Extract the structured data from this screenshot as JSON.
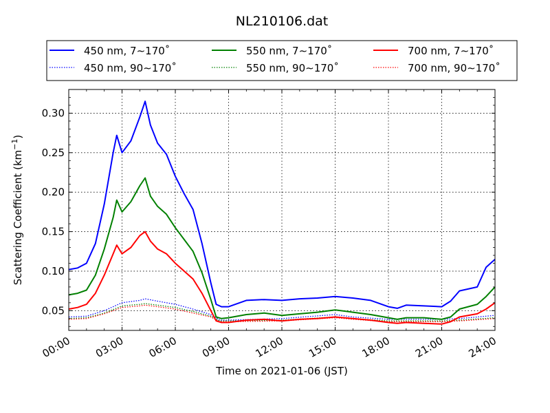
{
  "chart_data": {
    "type": "line",
    "title": "NL210106.dat",
    "xlabel": "Time on 2021-01-06 (JST)",
    "ylabel_main": "Scattering Coefficient (km",
    "ylabel_exp": "−1",
    "ylabel_close": ")",
    "x_unit": "hours",
    "xlim": [
      0,
      24
    ],
    "ylim": [
      0.025,
      0.33
    ],
    "x_ticks": [
      {
        "value": 0,
        "label": "00:00"
      },
      {
        "value": 3,
        "label": "03:00"
      },
      {
        "value": 6,
        "label": "06:00"
      },
      {
        "value": 9,
        "label": "09:00"
      },
      {
        "value": 12,
        "label": "12:00"
      },
      {
        "value": 15,
        "label": "15:00"
      },
      {
        "value": 18,
        "label": "18:00"
      },
      {
        "value": 21,
        "label": "21:00"
      },
      {
        "value": 24,
        "label": "24:00"
      }
    ],
    "y_ticks": [
      {
        "value": 0.05,
        "label": "0.05"
      },
      {
        "value": 0.1,
        "label": "0.10"
      },
      {
        "value": 0.15,
        "label": "0.15"
      },
      {
        "value": 0.2,
        "label": "0.20"
      },
      {
        "value": 0.25,
        "label": "0.25"
      },
      {
        "value": 0.3,
        "label": "0.30"
      }
    ],
    "grid": true,
    "grid_style": "dotted",
    "legend_position": "top, above plot",
    "legend_columns": 3,
    "series": [
      {
        "name": "450 nm, 7∼170˚",
        "color": "#0000ff",
        "style": "solid",
        "x": [
          0,
          0.5,
          1,
          1.5,
          2,
          2.5,
          2.7,
          3,
          3.5,
          4,
          4.3,
          4.6,
          5,
          5.5,
          6,
          6.5,
          7,
          7.5,
          8,
          8.3,
          8.6,
          9,
          10,
          11,
          12,
          13,
          14,
          15,
          16,
          17,
          18,
          18.5,
          19,
          20,
          21,
          21.5,
          22,
          23,
          23.5,
          24
        ],
        "y": [
          0.102,
          0.104,
          0.11,
          0.135,
          0.185,
          0.25,
          0.272,
          0.25,
          0.265,
          0.295,
          0.315,
          0.285,
          0.262,
          0.248,
          0.22,
          0.198,
          0.178,
          0.135,
          0.085,
          0.058,
          0.055,
          0.055,
          0.063,
          0.064,
          0.063,
          0.065,
          0.066,
          0.068,
          0.066,
          0.063,
          0.055,
          0.053,
          0.057,
          0.056,
          0.055,
          0.062,
          0.075,
          0.08,
          0.105,
          0.115
        ]
      },
      {
        "name": "550 nm, 7∼170˚",
        "color": "#008000",
        "style": "solid",
        "x": [
          0,
          0.5,
          1,
          1.5,
          2,
          2.5,
          2.7,
          3,
          3.5,
          4,
          4.3,
          4.6,
          5,
          5.5,
          6,
          6.5,
          7,
          7.5,
          8,
          8.3,
          8.6,
          9,
          10,
          11,
          12,
          13,
          14,
          15,
          16,
          17,
          18,
          18.5,
          19,
          20,
          21,
          21.5,
          22,
          23,
          23.5,
          24
        ],
        "y": [
          0.07,
          0.072,
          0.076,
          0.095,
          0.128,
          0.168,
          0.19,
          0.175,
          0.188,
          0.208,
          0.218,
          0.195,
          0.182,
          0.172,
          0.155,
          0.14,
          0.125,
          0.098,
          0.064,
          0.042,
          0.04,
          0.041,
          0.045,
          0.047,
          0.044,
          0.046,
          0.048,
          0.051,
          0.048,
          0.045,
          0.041,
          0.039,
          0.041,
          0.041,
          0.039,
          0.042,
          0.052,
          0.058,
          0.068,
          0.08
        ]
      },
      {
        "name": "700 nm, 7∼170˚",
        "color": "#ff0000",
        "style": "solid",
        "x": [
          0,
          0.5,
          1,
          1.5,
          2,
          2.5,
          2.7,
          3,
          3.5,
          4,
          4.3,
          4.6,
          5,
          5.5,
          6,
          6.5,
          7,
          7.5,
          8,
          8.3,
          8.6,
          9,
          10,
          11,
          12,
          13,
          14,
          15,
          16,
          17,
          18,
          18.5,
          19,
          20,
          21,
          21.5,
          22,
          23,
          23.5,
          24
        ],
        "y": [
          0.052,
          0.054,
          0.058,
          0.072,
          0.095,
          0.122,
          0.133,
          0.122,
          0.13,
          0.145,
          0.15,
          0.138,
          0.128,
          0.122,
          0.11,
          0.1,
          0.09,
          0.072,
          0.05,
          0.037,
          0.035,
          0.035,
          0.038,
          0.039,
          0.037,
          0.039,
          0.04,
          0.042,
          0.04,
          0.038,
          0.035,
          0.034,
          0.035,
          0.034,
          0.033,
          0.036,
          0.042,
          0.046,
          0.052,
          0.06
        ]
      },
      {
        "name": "450 nm, 90∼170˚",
        "color": "#0000ff",
        "style": "dotted",
        "x": [
          0,
          1,
          2,
          3,
          4,
          4.3,
          5,
          6,
          7,
          8,
          8.5,
          9,
          12,
          15,
          16,
          18,
          21,
          22,
          24
        ],
        "y": [
          0.042,
          0.043,
          0.05,
          0.06,
          0.063,
          0.065,
          0.062,
          0.058,
          0.052,
          0.045,
          0.038,
          0.038,
          0.04,
          0.045,
          0.042,
          0.039,
          0.039,
          0.04,
          0.044
        ]
      },
      {
        "name": "550 nm, 90∼170˚",
        "color": "#008000",
        "style": "dotted",
        "x": [
          0,
          1,
          2,
          3,
          4,
          4.3,
          5,
          6,
          7,
          8,
          8.5,
          9,
          12,
          15,
          16,
          18,
          21,
          22,
          24
        ],
        "y": [
          0.04,
          0.041,
          0.047,
          0.056,
          0.058,
          0.059,
          0.057,
          0.054,
          0.049,
          0.043,
          0.037,
          0.037,
          0.038,
          0.042,
          0.04,
          0.037,
          0.037,
          0.038,
          0.041
        ]
      },
      {
        "name": "700 nm, 90∼170˚",
        "color": "#ff0000",
        "style": "dotted",
        "x": [
          0,
          1,
          2,
          3,
          4,
          4.3,
          5,
          6,
          7,
          8,
          8.5,
          9,
          12,
          15,
          16,
          18,
          21,
          22,
          24
        ],
        "y": [
          0.039,
          0.04,
          0.046,
          0.054,
          0.056,
          0.057,
          0.055,
          0.052,
          0.047,
          0.042,
          0.036,
          0.036,
          0.037,
          0.041,
          0.039,
          0.036,
          0.036,
          0.037,
          0.04
        ]
      }
    ],
    "legend_order": [
      0,
      1,
      2,
      3,
      4,
      5
    ]
  }
}
